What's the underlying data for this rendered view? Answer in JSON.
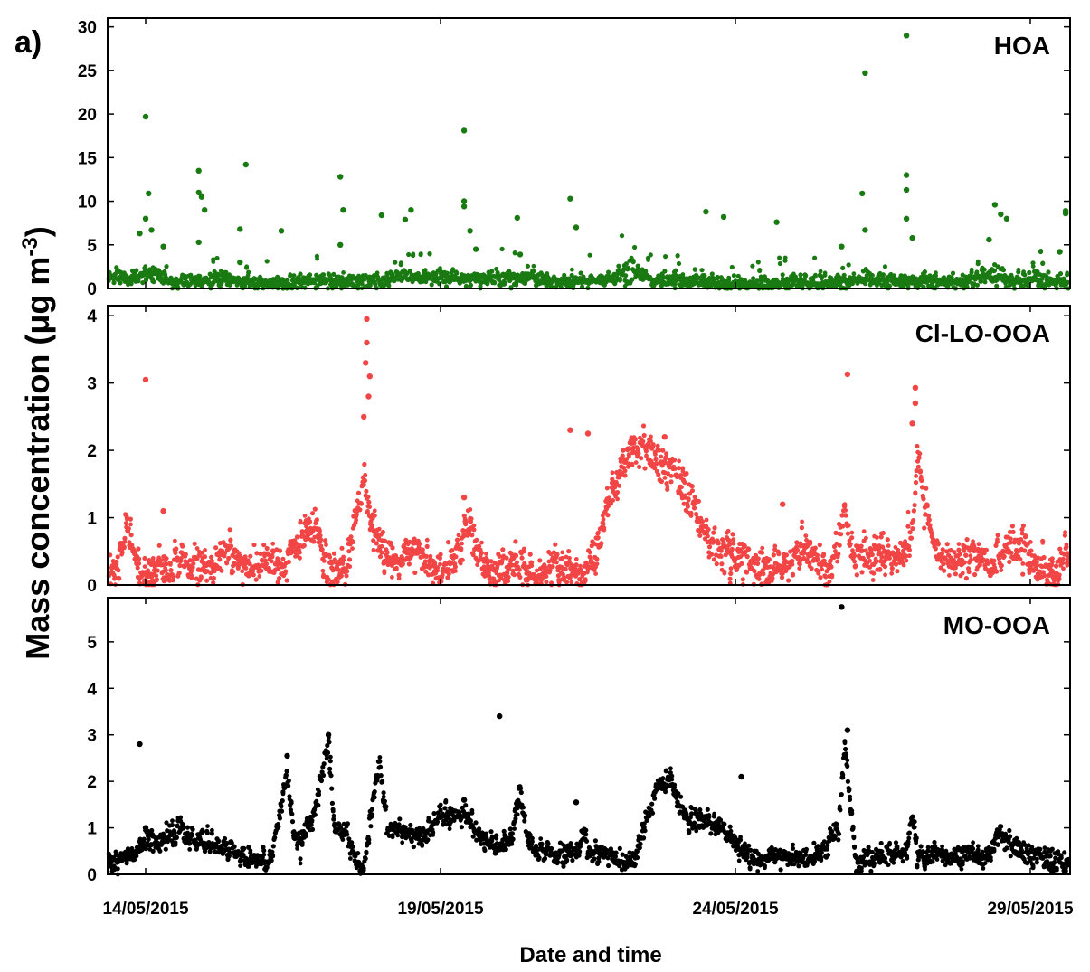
{
  "figure": {
    "panel_label": "a)",
    "ylabel": "Mass concentration",
    "ylabel_unit_base": " (μg m",
    "ylabel_unit_exp": "-3",
    "ylabel_unit_close": ")",
    "xlabel": "Date and time"
  },
  "colors": {
    "hoa": "#1a7a12",
    "cl_lo_ooa": "#f24545",
    "mo_ooa": "#000000",
    "frame": "#000000"
  },
  "chart_data": [
    {
      "type": "scatter",
      "title": "HOA",
      "ylim": [
        0,
        31
      ],
      "yticks": [
        "0",
        "5",
        "10",
        "15",
        "20",
        "25",
        "30"
      ],
      "xlim": [
        "13/05/2015 00:00",
        "30/05/2015 03:00"
      ],
      "xticks": [
        "14/05/2015",
        "19/05/2015",
        "24/05/2015",
        "29/05/2015"
      ],
      "series_color": "hoa",
      "baseline_knots": [
        [
          0,
          1.2
        ],
        [
          0.5,
          0.8
        ],
        [
          1,
          1.0
        ],
        [
          2,
          0.7
        ],
        [
          3,
          0.9
        ],
        [
          4,
          0.6
        ],
        [
          5,
          1.3
        ],
        [
          6,
          0.9
        ],
        [
          7,
          0.8
        ],
        [
          8,
          1.0
        ],
        [
          9,
          0.9
        ],
        [
          10,
          0.5
        ],
        [
          11,
          0.6
        ],
        [
          12,
          0.7
        ],
        [
          13,
          1.0
        ],
        [
          14,
          0.6
        ],
        [
          15,
          0.9
        ],
        [
          16,
          0.7
        ]
      ],
      "episodes": [
        [
          8.2,
          0.4,
          2.5
        ],
        [
          0.2,
          0.3,
          1.5
        ],
        [
          4.3,
          0.5,
          1.2
        ],
        [
          6.3,
          0.7,
          1.0
        ],
        [
          14.3,
          0.5,
          2.0
        ],
        [
          12.2,
          0.4,
          1.0
        ]
      ],
      "spikes": [
        [
          -0.1,
          6.3
        ],
        [
          0.0,
          19.7
        ],
        [
          0.05,
          10.9
        ],
        [
          0.0,
          8.0
        ],
        [
          0.1,
          6.7
        ],
        [
          0.3,
          4.8
        ],
        [
          0.9,
          13.5
        ],
        [
          0.9,
          11.0
        ],
        [
          0.95,
          10.5
        ],
        [
          1.0,
          9.0
        ],
        [
          0.9,
          5.3
        ],
        [
          1.6,
          6.8
        ],
        [
          1.7,
          14.2
        ],
        [
          1.6,
          3.0
        ],
        [
          2.3,
          6.6
        ],
        [
          3.3,
          12.8
        ],
        [
          3.35,
          9.0
        ],
        [
          3.3,
          5.0
        ],
        [
          4.0,
          8.4
        ],
        [
          4.5,
          9.0
        ],
        [
          4.4,
          7.9
        ],
        [
          5.4,
          18.1
        ],
        [
          5.4,
          10.0
        ],
        [
          5.4,
          9.4
        ],
        [
          5.5,
          6.6
        ],
        [
          5.6,
          4.5
        ],
        [
          6.3,
          8.1
        ],
        [
          6.35,
          3.9
        ],
        [
          7.2,
          10.3
        ],
        [
          7.3,
          7.0
        ],
        [
          9.5,
          8.8
        ],
        [
          9.8,
          8.2
        ],
        [
          10.7,
          7.6
        ],
        [
          11.8,
          4.8
        ],
        [
          12.2,
          24.7
        ],
        [
          12.15,
          10.9
        ],
        [
          12.2,
          6.7
        ],
        [
          12.9,
          29.0
        ],
        [
          12.9,
          13.0
        ],
        [
          12.9,
          11.3
        ],
        [
          12.9,
          8.0
        ],
        [
          13.0,
          5.8
        ],
        [
          14.4,
          9.6
        ],
        [
          14.5,
          8.5
        ],
        [
          14.6,
          8.0
        ],
        [
          14.3,
          5.6
        ],
        [
          15.6,
          8.9
        ],
        [
          15.6,
          8.6
        ],
        [
          15.5,
          4.2
        ]
      ],
      "sparse_noise": 3.0,
      "noise_sd": 0.4
    },
    {
      "type": "scatter",
      "title": "Cl-LO-OOA",
      "ylim": [
        0,
        4.15
      ],
      "yticks": [
        "0",
        "1",
        "2",
        "3",
        "4"
      ],
      "xlim": [
        "13/05/2015 00:00",
        "30/05/2015 03:00"
      ],
      "xticks": [
        "14/05/2015",
        "19/05/2015",
        "24/05/2015",
        "29/05/2015"
      ],
      "series_color": "cl_lo_ooa",
      "baseline_knots": [
        [
          -0.5,
          0.2
        ],
        [
          -0.3,
          0.9
        ],
        [
          -0.1,
          0.15
        ],
        [
          0.3,
          0.25
        ],
        [
          0.5,
          0.35
        ],
        [
          0.8,
          0.3
        ],
        [
          1.1,
          0.15
        ],
        [
          1.4,
          0.55
        ],
        [
          1.7,
          0.2
        ],
        [
          2.0,
          0.4
        ],
        [
          2.3,
          0.2
        ],
        [
          2.6,
          0.6
        ],
        [
          2.9,
          0.9
        ],
        [
          3.1,
          0.15
        ],
        [
          3.4,
          0.2
        ],
        [
          3.6,
          1.2
        ],
        [
          3.7,
          1.6
        ],
        [
          3.8,
          1.0
        ],
        [
          3.95,
          0.6
        ],
        [
          4.3,
          0.3
        ],
        [
          4.6,
          0.5
        ],
        [
          4.9,
          0.2
        ],
        [
          5.2,
          0.3
        ],
        [
          5.5,
          0.9
        ],
        [
          5.7,
          0.3
        ],
        [
          6.0,
          0.2
        ],
        [
          6.3,
          0.35
        ],
        [
          6.6,
          0.15
        ],
        [
          7.0,
          0.3
        ],
        [
          7.4,
          0.2
        ],
        [
          7.7,
          0.6
        ],
        [
          7.9,
          1.4
        ],
        [
          8.1,
          1.8
        ],
        [
          8.4,
          2.1
        ],
        [
          8.7,
          1.8
        ],
        [
          9.0,
          1.6
        ],
        [
          9.3,
          1.2
        ],
        [
          9.6,
          0.6
        ],
        [
          9.9,
          0.4
        ],
        [
          10.2,
          0.3
        ],
        [
          10.5,
          0.2
        ],
        [
          10.8,
          0.3
        ],
        [
          11.0,
          0.4
        ],
        [
          11.2,
          0.6
        ],
        [
          11.4,
          0.3
        ],
        [
          11.6,
          0.2
        ],
        [
          11.75,
          0.5
        ],
        [
          11.85,
          1.3
        ],
        [
          11.95,
          0.5
        ],
        [
          12.2,
          0.3
        ],
        [
          12.5,
          0.5
        ],
        [
          12.8,
          0.4
        ],
        [
          13.0,
          0.8
        ],
        [
          13.1,
          2.0
        ],
        [
          13.2,
          1.2
        ],
        [
          13.4,
          0.5
        ],
        [
          13.7,
          0.3
        ],
        [
          14.0,
          0.5
        ],
        [
          14.3,
          0.3
        ],
        [
          14.6,
          0.55
        ],
        [
          14.9,
          0.5
        ],
        [
          15.1,
          0.3
        ],
        [
          15.3,
          0.1
        ],
        [
          15.5,
          0.2
        ],
        [
          15.6,
          0.6
        ],
        [
          15.7,
          0.4
        ]
      ],
      "episodes": [],
      "spikes": [
        [
          0.0,
          3.05
        ],
        [
          3.75,
          3.95
        ],
        [
          3.75,
          3.6
        ],
        [
          3.73,
          3.3
        ],
        [
          3.8,
          3.1
        ],
        [
          3.78,
          2.8
        ],
        [
          3.7,
          2.5
        ],
        [
          11.9,
          3.13
        ],
        [
          13.05,
          2.93
        ],
        [
          13.05,
          2.7
        ],
        [
          13.0,
          2.4
        ],
        [
          7.2,
          2.3
        ],
        [
          7.5,
          2.25
        ],
        [
          8.8,
          2.2
        ],
        [
          5.4,
          1.3
        ],
        [
          10.8,
          1.2
        ],
        [
          0.3,
          1.1
        ]
      ],
      "sparse_noise": 0.25,
      "noise_sd": 0.13
    },
    {
      "type": "scatter",
      "title": "MO-OOA",
      "ylim": [
        0,
        5.95
      ],
      "yticks": [
        "0",
        "1",
        "2",
        "3",
        "4",
        "5"
      ],
      "xlim": [
        "13/05/2015 00:00",
        "30/05/2015 03:00"
      ],
      "xticks": [
        "14/05/2015",
        "19/05/2015",
        "24/05/2015",
        "29/05/2015"
      ],
      "series_color": "mo_ooa",
      "baseline_knots": [
        [
          -0.5,
          0.3
        ],
        [
          -0.2,
          0.45
        ],
        [
          0.0,
          0.7
        ],
        [
          0.3,
          0.75
        ],
        [
          0.5,
          0.8
        ],
        [
          0.55,
          1.0
        ],
        [
          0.7,
          0.75
        ],
        [
          1.0,
          0.7
        ],
        [
          1.3,
          0.55
        ],
        [
          1.6,
          0.4
        ],
        [
          1.9,
          0.3
        ],
        [
          2.1,
          0.3
        ],
        [
          2.2,
          0.8
        ],
        [
          2.4,
          2.2
        ],
        [
          2.5,
          1.0
        ],
        [
          2.6,
          0.6
        ],
        [
          2.9,
          1.5
        ],
        [
          3.1,
          2.9
        ],
        [
          3.2,
          1.0
        ],
        [
          3.4,
          0.9
        ],
        [
          3.6,
          0.2
        ],
        [
          3.7,
          0.1
        ],
        [
          3.85,
          1.5
        ],
        [
          3.95,
          2.4
        ],
        [
          4.1,
          1.0
        ],
        [
          4.4,
          0.9
        ],
        [
          4.7,
          0.8
        ],
        [
          5.0,
          1.2
        ],
        [
          5.3,
          1.3
        ],
        [
          5.5,
          1.2
        ],
        [
          5.6,
          0.9
        ],
        [
          5.8,
          0.7
        ],
        [
          6.0,
          0.6
        ],
        [
          6.2,
          0.8
        ],
        [
          6.35,
          1.9
        ],
        [
          6.45,
          0.8
        ],
        [
          6.7,
          0.5
        ],
        [
          7.0,
          0.4
        ],
        [
          7.3,
          0.4
        ],
        [
          7.45,
          0.9
        ],
        [
          7.5,
          0.4
        ],
        [
          7.7,
          0.5
        ],
        [
          8.0,
          0.3
        ],
        [
          8.3,
          0.3
        ],
        [
          8.5,
          1.2
        ],
        [
          8.7,
          1.9
        ],
        [
          8.9,
          2.0
        ],
        [
          9.0,
          1.6
        ],
        [
          9.2,
          1.2
        ],
        [
          9.5,
          1.1
        ],
        [
          9.8,
          1.0
        ],
        [
          10.1,
          0.5
        ],
        [
          10.4,
          0.3
        ],
        [
          10.7,
          0.35
        ],
        [
          11.0,
          0.35
        ],
        [
          11.3,
          0.35
        ],
        [
          11.5,
          0.5
        ],
        [
          11.75,
          1.0
        ],
        [
          11.85,
          2.8
        ],
        [
          11.95,
          1.5
        ],
        [
          12.05,
          0.25
        ],
        [
          12.3,
          0.35
        ],
        [
          12.6,
          0.45
        ],
        [
          12.9,
          0.5
        ],
        [
          13.0,
          1.3
        ],
        [
          13.1,
          0.3
        ],
        [
          13.4,
          0.5
        ],
        [
          13.7,
          0.4
        ],
        [
          14.0,
          0.4
        ],
        [
          14.3,
          0.4
        ],
        [
          14.5,
          0.9
        ],
        [
          14.7,
          0.6
        ],
        [
          15.0,
          0.4
        ],
        [
          15.3,
          0.3
        ],
        [
          15.6,
          0.3
        ]
      ],
      "episodes": [],
      "spikes": [
        [
          -0.1,
          2.8
        ],
        [
          0.0,
          1.0
        ],
        [
          6.0,
          3.4
        ],
        [
          11.8,
          5.75
        ],
        [
          10.1,
          2.1
        ],
        [
          7.3,
          1.55
        ],
        [
          5.4,
          1.6
        ],
        [
          11.9,
          3.1
        ],
        [
          2.4,
          2.55
        ],
        [
          3.1,
          3.0
        ]
      ],
      "sparse_noise": 0.2,
      "noise_sd": 0.11
    }
  ]
}
